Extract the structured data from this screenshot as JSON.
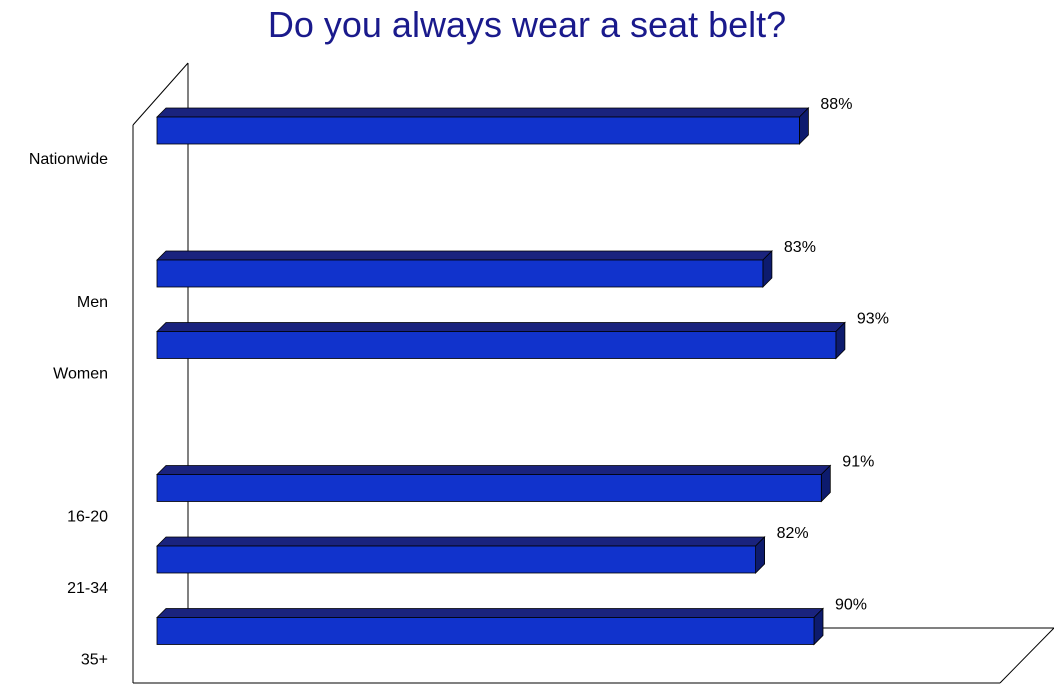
{
  "chart_data": {
    "type": "bar",
    "orientation": "horizontal",
    "style": "3d",
    "title": "Do you always wear a seat belt?",
    "xlabel": "",
    "ylabel": "",
    "xlim": [
      0,
      100
    ],
    "grid": false,
    "legend": "none",
    "value_format": "percent",
    "bar_color": "#1133cc",
    "bar_top_color": "#1a237e",
    "bar_side_color": "#0d1b6e",
    "title_color": "#1a1a8c",
    "groups": [
      {
        "categories": [
          "Nationwide"
        ],
        "values": [
          88
        ]
      },
      {
        "categories": [
          "Men",
          "Women"
        ],
        "values": [
          83,
          93
        ]
      },
      {
        "categories": [
          "16-20",
          "21-34",
          "35+"
        ],
        "values": [
          91,
          82,
          90
        ]
      }
    ],
    "categories": [
      "Nationwide",
      "Men",
      "Women",
      "16-20",
      "21-34",
      "35+"
    ],
    "values": [
      88,
      83,
      93,
      91,
      82,
      90
    ],
    "value_labels": [
      "88%",
      "83%",
      "93%",
      "91%",
      "82%",
      "90%"
    ]
  }
}
